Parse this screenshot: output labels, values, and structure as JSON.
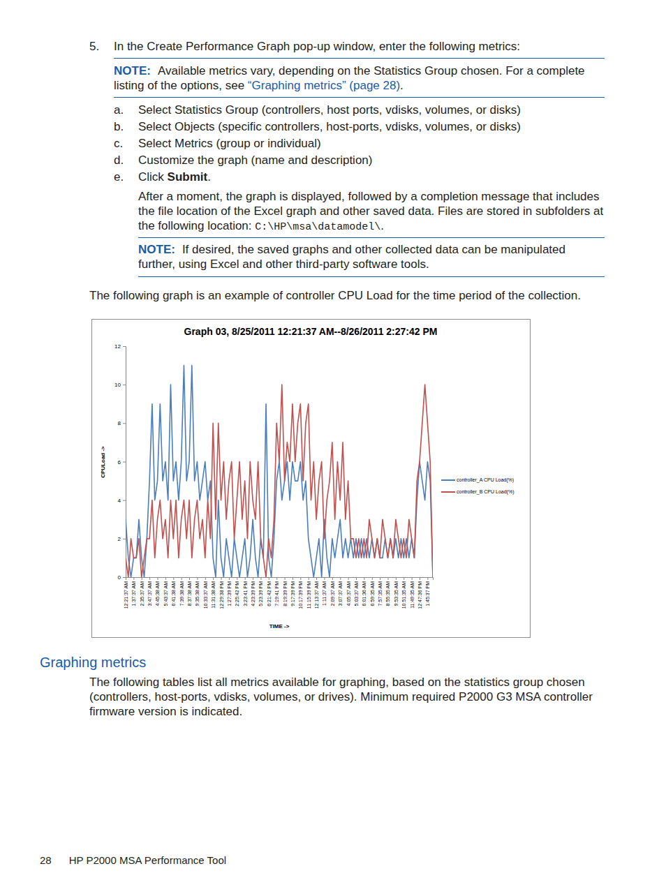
{
  "document": {
    "step": {
      "number": "5.",
      "text": "In the Create Performance Graph pop-up window, enter the following metrics:"
    },
    "note1": {
      "label": "NOTE:",
      "text": "Available metrics vary, depending on the Statistics Group chosen. For a complete listing of the options, see ",
      "link": "“Graphing metrics” (page 28)",
      "end": "."
    },
    "substeps": [
      {
        "letter": "a.",
        "text": "Select Statistics Group (controllers, host ports, vdisks, volumes, or disks)"
      },
      {
        "letter": "b.",
        "text": "Select Objects (specific controllers, host-ports, vdisks, volumes, or disks)"
      },
      {
        "letter": "c.",
        "text": "Select Metrics (group or individual)"
      },
      {
        "letter": "d.",
        "text": "Customize the graph (name and description)"
      },
      {
        "letter": "e.",
        "text": "Click ",
        "bold": "Submit",
        "end": "."
      }
    ],
    "result": {
      "text": "After a moment, the graph is displayed, followed by a completion message that includes the file location of the Excel graph and other saved data. Files are stored in subfolders at the following location: ",
      "path": "C:\\HP\\msa\\datamodel\\",
      "end": "."
    },
    "note2": {
      "label": "NOTE:",
      "text": "If desired, the saved graphs and other collected data can be manipulated further, using Excel and other third-party software tools."
    },
    "intro": "The following graph is an example of controller CPU Load for the time period of the collection.",
    "heading": "Graphing metrics",
    "body": "The following tables list all metrics available for graphing, based on the statistics group chosen (controllers, host-ports, vdisks, volumes, or drives). Minimum required P2000 G3 MSA controller firmware version is indicated.",
    "footer": {
      "page": "28",
      "title": "HP P2000 MSA Performance Tool"
    }
  },
  "chart_data": {
    "type": "line",
    "title": "Graph 03,  8/25/2011 12:21:37 AM--8/26/2011 2:27:42 PM",
    "x_label": "TIME  ->",
    "y_label": "CPULoad ->",
    "categories": [
      "12:21:37 AM",
      null,
      null,
      "1:37:37 AM",
      null,
      null,
      "2:35:37 AM",
      null,
      null,
      "3:47:37 AM",
      null,
      null,
      "4:45:38 AM",
      null,
      null,
      "5:43:37 AM",
      null,
      null,
      "6:41:38 AM",
      null,
      null,
      "7:39:38 AM",
      null,
      null,
      "8:37:38 AM",
      null,
      null,
      "9:35:38 AM",
      null,
      null,
      "10:33:37 AM",
      null,
      null,
      "11:31:38 AM",
      null,
      null,
      "12:29:38 PM",
      null,
      null,
      "1:27:39 PM",
      null,
      null,
      "2:25:42 PM",
      null,
      null,
      "3:23:41 PM",
      null,
      null,
      "4:23:39 PM",
      null,
      null,
      "5:23:39 PM",
      null,
      null,
      "6:21:42 PM",
      null,
      null,
      "7:19:41 PM",
      null,
      null,
      "8:19:39 PM",
      null,
      null,
      "9:17:39 PM",
      null,
      null,
      "10:17:39 PM",
      null,
      null,
      "11:15:39 PM",
      null,
      null,
      "12:13:37 AM",
      null,
      null,
      "1:11:37 AM",
      null,
      null,
      "2:09:37 AM",
      null,
      null,
      "3:07:37 AM",
      null,
      null,
      "4:05:37 AM",
      null,
      null,
      "5:03:37 AM",
      null,
      null,
      "6:01:36 AM",
      null,
      null,
      "6:59:35 AM",
      null,
      null,
      "7:57:35 AM",
      null,
      null,
      "8:55:35 AM",
      null,
      null,
      "9:53:35 AM",
      null,
      null,
      "10:51:35 AM",
      null,
      null,
      "11:49:35 AM",
      null,
      null,
      "12:47:36 PM",
      null,
      null,
      "1:45:37 PM",
      null,
      null
    ],
    "series": [
      {
        "name": "controller_A CPU Load(%)",
        "color": "#4a7ebb",
        "values": [
          3,
          1,
          0,
          1,
          1,
          3,
          1,
          0,
          2,
          5,
          9,
          4,
          5,
          9,
          5,
          6,
          4,
          10,
          5,
          6,
          4,
          6,
          11,
          5,
          6,
          11,
          5,
          6,
          4,
          5,
          6,
          4,
          5,
          1,
          0,
          4,
          1,
          0,
          2,
          1,
          0,
          2,
          1,
          0,
          1,
          2,
          0,
          1,
          3,
          1,
          0,
          2,
          1,
          9,
          1,
          0,
          2,
          5,
          6,
          4,
          5,
          6,
          4,
          6,
          5,
          5,
          6,
          4,
          5,
          2,
          1,
          0,
          1,
          2,
          0,
          3,
          1,
          0,
          2,
          1,
          2,
          3,
          1,
          2,
          1,
          2,
          1,
          2,
          1,
          2,
          1,
          2,
          1,
          2,
          1,
          2,
          1,
          1,
          2,
          1,
          2,
          1,
          2,
          1,
          2,
          1,
          2,
          1,
          2,
          1,
          4,
          6,
          5,
          4,
          6,
          5,
          0
        ]
      },
      {
        "name": "controller_B CPU Load(%)",
        "color": "#c0504d",
        "values": [
          1,
          0,
          2,
          1,
          1,
          2,
          0,
          1,
          2,
          2,
          4,
          1,
          3,
          4,
          2,
          3,
          1,
          4,
          2,
          4,
          1,
          3,
          4,
          2,
          4,
          1,
          3,
          4,
          2,
          3,
          1,
          4,
          2,
          8,
          3,
          8,
          4,
          6,
          3,
          5,
          6,
          2,
          4,
          6,
          3,
          5,
          2,
          6,
          4,
          3,
          6,
          2,
          1,
          0,
          2,
          1,
          3,
          8,
          6,
          10,
          5,
          7,
          6,
          9,
          6,
          8,
          9,
          5,
          8,
          9,
          4,
          6,
          3,
          5,
          6,
          2,
          4,
          5,
          7,
          3,
          6,
          4,
          7,
          3,
          5,
          2,
          2,
          1,
          2,
          1,
          2,
          1,
          3,
          2,
          1,
          2,
          1,
          3,
          2,
          1,
          2,
          1,
          3,
          2,
          1,
          2,
          1,
          3,
          2,
          1,
          5,
          6,
          8,
          10,
          8,
          6,
          0
        ]
      }
    ],
    "ylim": [
      0,
      12
    ],
    "yticks": [
      0,
      2,
      4,
      6,
      8,
      10,
      12
    ],
    "grid": false,
    "legend": "right"
  }
}
